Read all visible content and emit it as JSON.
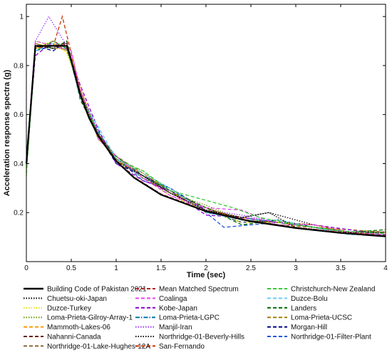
{
  "chart_data": {
    "type": "line",
    "title": "",
    "xlabel": "Time (sec)",
    "ylabel": "Acceleration response spectra (g)",
    "xlim": [
      0,
      4
    ],
    "ylim": [
      0,
      1.05
    ],
    "xticks": [
      0,
      0.5,
      1,
      1.5,
      2,
      2.5,
      3,
      3.5,
      4
    ],
    "xtick_labels": [
      "0",
      "0.5",
      "1",
      "1.5",
      "2",
      "2.5",
      "3",
      "3.5",
      "4"
    ],
    "yticks": [
      0.2,
      0.4,
      0.6,
      0.8,
      1.0
    ],
    "ytick_labels": [
      "0.2",
      "0.4",
      "0.6",
      "0.8",
      "1"
    ],
    "grid": false,
    "legend_position": "bottom",
    "series": [
      {
        "name": "Building Code of Pakistan 2021",
        "color": "#000000",
        "style": "solid",
        "x": [
          0,
          0.1,
          0.45,
          0.5,
          0.6,
          0.7,
          0.8,
          1.0,
          1.2,
          1.5,
          2.0,
          2.5,
          3.0,
          3.5,
          4.0
        ],
        "y": [
          0.4,
          0.88,
          0.88,
          0.82,
          0.68,
          0.585,
          0.513,
          0.41,
          0.342,
          0.273,
          0.205,
          0.164,
          0.137,
          0.117,
          0.103
        ]
      },
      {
        "name": "Mean Matched Spectrum",
        "color": "#b22222",
        "style": "dashed",
        "x": [
          0,
          0.1,
          0.45,
          0.5,
          0.6,
          0.7,
          0.8,
          1.0,
          1.2,
          1.5,
          2.0,
          2.5,
          3.0,
          3.5,
          4.0
        ],
        "y": [
          0.42,
          0.87,
          0.89,
          0.83,
          0.69,
          0.59,
          0.52,
          0.415,
          0.345,
          0.276,
          0.208,
          0.167,
          0.14,
          0.12,
          0.107
        ]
      },
      {
        "name": "Christchurch-New Zealand",
        "color": "#33cc33",
        "style": "dashed",
        "x": [
          0,
          0.1,
          0.3,
          0.45,
          0.6,
          0.8,
          1.0,
          1.3,
          1.6,
          2.0,
          2.3,
          2.6,
          3.0,
          3.5,
          4.0
        ],
        "y": [
          0.36,
          0.86,
          0.9,
          0.87,
          0.69,
          0.52,
          0.42,
          0.37,
          0.29,
          0.25,
          0.22,
          0.18,
          0.15,
          0.125,
          0.115
        ]
      },
      {
        "name": "Chuetsu-oki-Japan",
        "color": "#000000",
        "style": "dotted",
        "x": [
          0,
          0.1,
          0.3,
          0.45,
          0.6,
          0.8,
          1.0,
          1.3,
          1.6,
          2.0,
          2.4,
          2.7,
          3.0,
          3.5,
          4.0
        ],
        "y": [
          0.4,
          0.88,
          0.87,
          0.89,
          0.69,
          0.51,
          0.41,
          0.35,
          0.28,
          0.21,
          0.18,
          0.2,
          0.14,
          0.12,
          0.12
        ]
      },
      {
        "name": "Coalinga",
        "color": "#ee44ee",
        "style": "dashed",
        "x": [
          0,
          0.1,
          0.3,
          0.5,
          0.6,
          0.8,
          1.0,
          1.3,
          1.6,
          2.0,
          2.4,
          2.8,
          3.2,
          3.6,
          4.0
        ],
        "y": [
          0.42,
          0.9,
          0.88,
          0.86,
          0.7,
          0.5,
          0.43,
          0.34,
          0.27,
          0.22,
          0.21,
          0.15,
          0.15,
          0.12,
          0.11
        ]
      },
      {
        "name": "Duzce-Bolu",
        "color": "#66ccff",
        "style": "dashed",
        "x": [
          0,
          0.1,
          0.3,
          0.45,
          0.6,
          0.8,
          1.0,
          1.3,
          1.6,
          2.0,
          2.4,
          2.8,
          3.2,
          3.6,
          4.0
        ],
        "y": [
          0.44,
          0.86,
          0.89,
          0.88,
          0.67,
          0.55,
          0.42,
          0.36,
          0.3,
          0.2,
          0.17,
          0.17,
          0.14,
          0.11,
          0.11
        ]
      },
      {
        "name": "Duzce-Turkey",
        "color": "#e6e600",
        "style": "dotted",
        "x": [
          0,
          0.1,
          0.3,
          0.45,
          0.6,
          0.8,
          1.0,
          1.3,
          1.6,
          2.0,
          2.4,
          2.8,
          3.2,
          3.6,
          4.0
        ],
        "y": [
          0.38,
          0.87,
          0.9,
          0.85,
          0.7,
          0.5,
          0.42,
          0.34,
          0.27,
          0.21,
          0.16,
          0.16,
          0.15,
          0.12,
          0.11
        ]
      },
      {
        "name": "Kobe-Japan",
        "color": "#8800cc",
        "style": "dashed",
        "x": [
          0,
          0.1,
          0.3,
          0.45,
          0.6,
          0.8,
          1.0,
          1.3,
          1.6,
          2.0,
          2.4,
          2.8,
          3.2,
          3.6,
          4.0
        ],
        "y": [
          0.4,
          0.84,
          0.9,
          0.87,
          0.72,
          0.54,
          0.4,
          0.33,
          0.29,
          0.19,
          0.18,
          0.16,
          0.15,
          0.13,
          0.11
        ]
      },
      {
        "name": "Landers",
        "color": "#006600",
        "style": "dashed",
        "x": [
          0,
          0.1,
          0.3,
          0.45,
          0.6,
          0.8,
          1.0,
          1.3,
          1.6,
          2.0,
          2.4,
          2.8,
          3.2,
          3.6,
          4.0
        ],
        "y": [
          0.41,
          0.88,
          0.87,
          0.9,
          0.66,
          0.52,
          0.43,
          0.35,
          0.29,
          0.22,
          0.15,
          0.17,
          0.14,
          0.12,
          0.13
        ]
      },
      {
        "name": "Loma-Prieta-Gilroy-Array-1",
        "color": "#669900",
        "style": "dotted",
        "x": [
          0,
          0.1,
          0.3,
          0.45,
          0.6,
          0.8,
          1.0,
          1.3,
          1.6,
          2.0,
          2.4,
          2.8,
          3.2,
          3.6,
          4.0
        ],
        "y": [
          0.35,
          0.9,
          0.88,
          0.86,
          0.68,
          0.51,
          0.41,
          0.37,
          0.28,
          0.23,
          0.17,
          0.16,
          0.14,
          0.12,
          0.12
        ]
      },
      {
        "name": "Loma-Prieta-LGPC",
        "color": "#0077aa",
        "style": "dashdot",
        "x": [
          0,
          0.1,
          0.3,
          0.45,
          0.6,
          0.8,
          1.0,
          1.3,
          1.6,
          2.0,
          2.4,
          2.8,
          3.2,
          3.6,
          4.0
        ],
        "y": [
          0.43,
          0.86,
          0.88,
          0.88,
          0.67,
          0.53,
          0.42,
          0.34,
          0.3,
          0.2,
          0.18,
          0.16,
          0.14,
          0.12,
          0.11
        ]
      },
      {
        "name": "Loma-Prieta-UCSC",
        "color": "#a08000",
        "style": "dashed",
        "x": [
          0,
          0.1,
          0.3,
          0.45,
          0.6,
          0.8,
          1.0,
          1.3,
          1.6,
          2.0,
          2.4,
          2.8,
          3.2,
          3.6,
          4.0
        ],
        "y": [
          0.39,
          0.89,
          0.87,
          0.87,
          0.69,
          0.5,
          0.43,
          0.35,
          0.28,
          0.22,
          0.17,
          0.15,
          0.14,
          0.13,
          0.12
        ]
      },
      {
        "name": "Mammoth-Lakes-06",
        "color": "#ff9900",
        "style": "dashed",
        "x": [
          0,
          0.1,
          0.3,
          0.45,
          0.6,
          0.8,
          1.0,
          1.3,
          1.6,
          2.0,
          2.4,
          2.8,
          3.2,
          3.6,
          4.0
        ],
        "y": [
          0.41,
          0.87,
          0.89,
          0.86,
          0.71,
          0.51,
          0.41,
          0.36,
          0.29,
          0.2,
          0.18,
          0.16,
          0.15,
          0.12,
          0.11
        ]
      },
      {
        "name": "Manjil-Iran",
        "color": "#9933ff",
        "style": "dotted",
        "x": [
          0,
          0.1,
          0.25,
          0.45,
          0.6,
          0.8,
          1.0,
          1.3,
          1.6,
          2.0,
          2.4,
          2.8,
          3.2,
          3.6,
          4.0
        ],
        "y": [
          0.4,
          0.9,
          1.0,
          0.88,
          0.7,
          0.53,
          0.42,
          0.35,
          0.27,
          0.21,
          0.19,
          0.16,
          0.14,
          0.12,
          0.11
        ]
      },
      {
        "name": "Morgan-Hill",
        "color": "#000088",
        "style": "dashed",
        "x": [
          0,
          0.1,
          0.3,
          0.45,
          0.6,
          0.8,
          1.0,
          1.3,
          1.6,
          2.0,
          2.4,
          2.8,
          3.2,
          3.6,
          4.0
        ],
        "y": [
          0.42,
          0.88,
          0.86,
          0.9,
          0.68,
          0.52,
          0.4,
          0.35,
          0.3,
          0.21,
          0.16,
          0.17,
          0.14,
          0.12,
          0.11
        ]
      },
      {
        "name": "Nahanni-Canada",
        "color": "#662200",
        "style": "dashed",
        "x": [
          0,
          0.1,
          0.3,
          0.45,
          0.6,
          0.8,
          1.0,
          1.3,
          1.6,
          2.0,
          2.4,
          2.8,
          3.2,
          3.6,
          4.0
        ],
        "y": [
          0.4,
          0.87,
          0.9,
          0.87,
          0.69,
          0.52,
          0.42,
          0.34,
          0.28,
          0.22,
          0.17,
          0.16,
          0.15,
          0.12,
          0.12
        ]
      },
      {
        "name": "Northridge-01-Beverly-Hills",
        "color": "#000000",
        "style": "dotted",
        "x": [
          0,
          0.1,
          0.3,
          0.45,
          0.6,
          0.8,
          1.0,
          1.3,
          1.6,
          2.0,
          2.4,
          2.7,
          3.2,
          3.6,
          4.0
        ],
        "y": [
          0.41,
          0.88,
          0.88,
          0.88,
          0.68,
          0.51,
          0.41,
          0.35,
          0.28,
          0.21,
          0.18,
          0.2,
          0.15,
          0.12,
          0.11
        ]
      },
      {
        "name": "Northridge-01-Filter-Plant",
        "color": "#2255dd",
        "style": "dashed",
        "x": [
          0,
          0.1,
          0.3,
          0.45,
          0.6,
          0.8,
          1.0,
          1.3,
          1.6,
          2.0,
          2.2,
          2.8,
          3.2,
          3.6,
          4.0
        ],
        "y": [
          0.4,
          0.86,
          0.88,
          0.87,
          0.7,
          0.52,
          0.42,
          0.33,
          0.29,
          0.2,
          0.14,
          0.16,
          0.14,
          0.12,
          0.11
        ]
      },
      {
        "name": "Northridge-01-Lake-Hughes-12A",
        "color": "#886633",
        "style": "dashed",
        "x": [
          0,
          0.1,
          0.3,
          0.45,
          0.6,
          0.8,
          1.0,
          1.3,
          1.6,
          2.0,
          2.4,
          2.8,
          3.2,
          3.6,
          4.0
        ],
        "y": [
          0.38,
          0.89,
          0.87,
          0.88,
          0.69,
          0.51,
          0.43,
          0.36,
          0.28,
          0.22,
          0.17,
          0.16,
          0.15,
          0.12,
          0.12
        ]
      },
      {
        "name": "San-Fernando",
        "color": "#cc3300",
        "style": "dashed",
        "x": [
          0,
          0.1,
          0.3,
          0.4,
          0.6,
          0.8,
          1.0,
          1.3,
          1.6,
          2.0,
          2.4,
          2.8,
          3.2,
          3.6,
          4.0
        ],
        "y": [
          0.4,
          0.86,
          0.88,
          1.0,
          0.7,
          0.52,
          0.42,
          0.35,
          0.28,
          0.21,
          0.18,
          0.16,
          0.14,
          0.12,
          0.11
        ]
      }
    ]
  },
  "legend": {
    "columns": 3,
    "order": [
      "Building Code of Pakistan 2021",
      "Mean Matched Spectrum",
      "Christchurch-New Zealand",
      "Chuetsu-oki-Japan",
      "Coalinga",
      "Duzce-Bolu",
      "Duzce-Turkey",
      "Kobe-Japan",
      "Landers",
      "Loma-Prieta-Gilroy-Array-1",
      "Loma-Prieta-LGPC",
      "Loma-Prieta-UCSC",
      "Mammoth-Lakes-06",
      "Manjil-Iran",
      "Morgan-Hill",
      "Nahanni-Canada",
      "Northridge-01-Beverly-Hills",
      "Northridge-01-Filter-Plant",
      "Northridge-01-Lake-Hughes-12A",
      "San-Fernando"
    ]
  }
}
